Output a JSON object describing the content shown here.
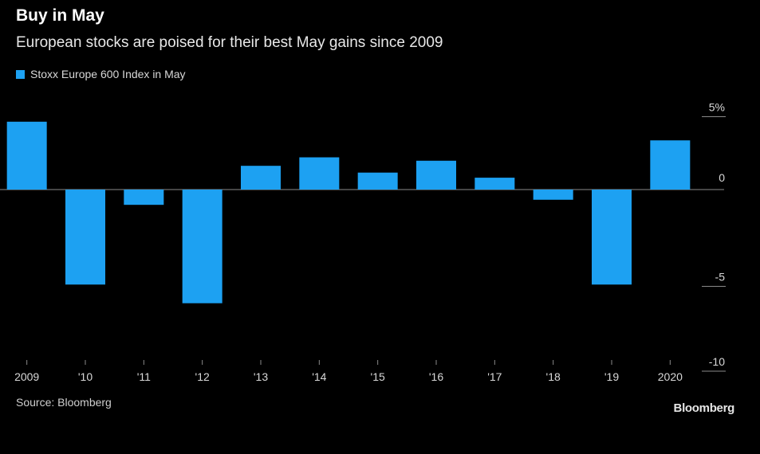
{
  "header": {
    "title": "Buy in May",
    "subtitle": "European stocks are poised for their best May gains since 2009"
  },
  "legend": {
    "label": "Stoxx Europe 600 Index in May"
  },
  "footer": {
    "source": "Source: Bloomberg",
    "brand": "Bloomberg"
  },
  "colors": {
    "bar": "#1da1f2",
    "background": "#000000",
    "axis": "#8a8a8a",
    "text": "#d8d8d8"
  },
  "chart_data": {
    "type": "bar",
    "categories": [
      "2009",
      "'10",
      "'11",
      "'12",
      "'13",
      "'14",
      "'15",
      "'16",
      "'17",
      "'18",
      "'19",
      "2020"
    ],
    "series": [
      {
        "name": "Stoxx Europe 600 Index in May",
        "values": [
          4.0,
          -5.6,
          -0.9,
          -6.7,
          1.4,
          1.9,
          1.0,
          1.7,
          0.7,
          -0.6,
          -5.6,
          2.9
        ]
      }
    ],
    "yticks": [
      {
        "value": 5,
        "label": "5%"
      },
      {
        "value": 0,
        "label": "0"
      },
      {
        "value": -5,
        "label": "-5"
      },
      {
        "value": -10,
        "label": "-10"
      }
    ],
    "ylim": [
      -10,
      5
    ],
    "xlabel": "",
    "ylabel": "",
    "grid": false,
    "legend_position": "top-left"
  }
}
